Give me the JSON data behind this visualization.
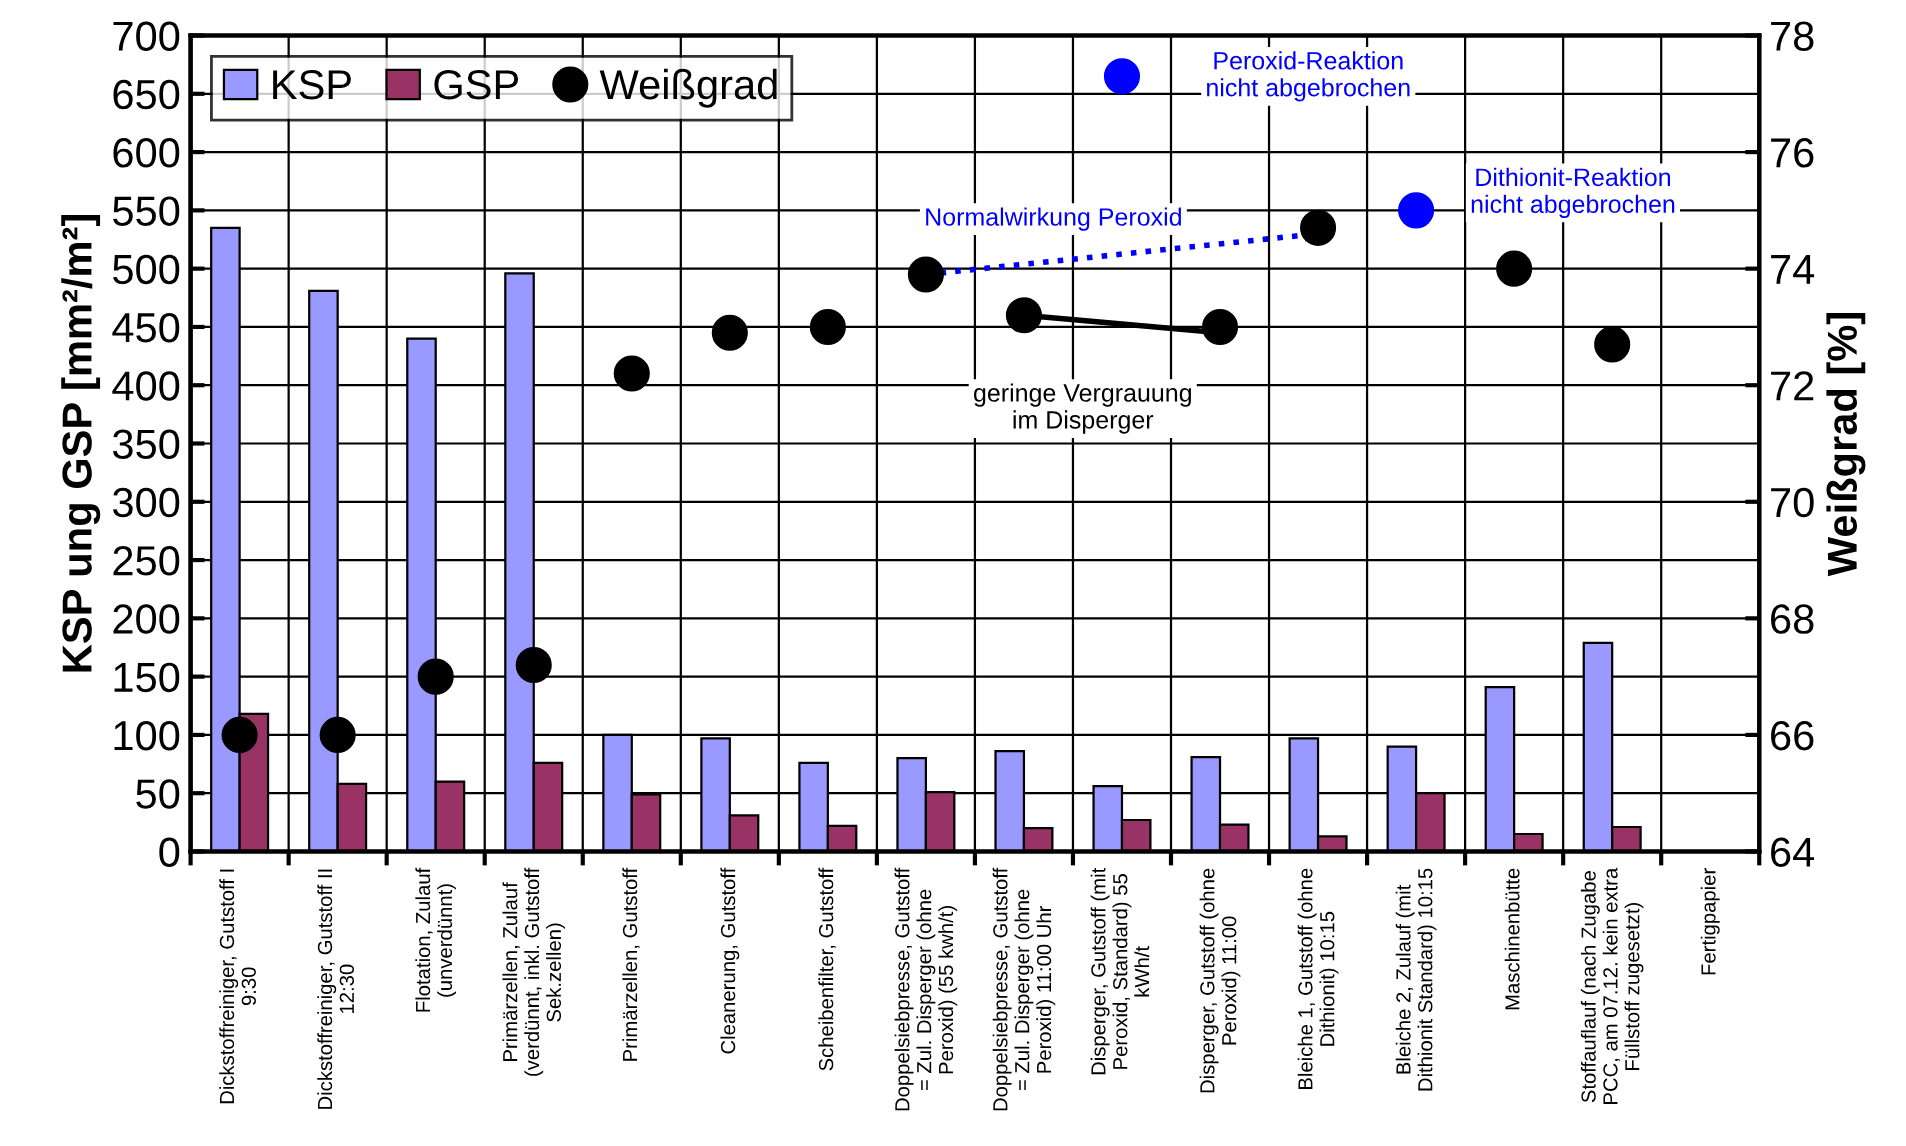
{
  "chart_data": {
    "type": "bar",
    "ylabel": "KSP ung GSP [mm²/m²]",
    "y2label": "Weißgrad [%]",
    "categories": [
      "Dickstoffreiniger, Gutstoff I\n9:30",
      "Dickstoffreiniger, Gutstoff II\n12:30",
      "Flotation, Zulauf\n(unverdünnt)",
      "Primärzellen, Zulauf\n(verdünnt, inkl. Gutstoff\nSek.zellen)",
      "Primärzellen, Gutstoff",
      "Cleanerung, Gutstoff",
      "Scheibenfilter, Gutstoff",
      "Doppelsiebpresse, Gutstoff\n= Zul. Disperger (ohne\nPeroxid) (55 kwh/t)",
      "Doppelsiebpresse, Gutstoff\n= Zul. Disperger (ohne\nPeroxid) 11:00 Uhr",
      "Disperger, Gutstoff (mit\nPeroxid, Standard) 55\nkWh/t",
      "Disperger, Gutstoff (ohne\nPeroxid) 11:00",
      "Bleiche 1, Gutstoff (ohne\nDithionit) 10:15",
      "Bleiche 2, Zulauf (mit\nDithionit Standard) 10:15",
      "Maschinenbütte",
      "Stoffauflauf (nach Zugabe\nPCC, am 07.12. kein extra\nFüllstoff zugesetzt)",
      "Fertigpapier"
    ],
    "series": [
      {
        "name": "KSP",
        "color": "#9999ff",
        "values": [
          535,
          481,
          440,
          496,
          100,
          97,
          76,
          80,
          86,
          56,
          81,
          97,
          90,
          141,
          179,
          null
        ]
      },
      {
        "name": "GSP",
        "color": "#993366",
        "values": [
          118,
          58,
          60,
          76,
          49,
          31,
          22,
          51,
          20,
          27,
          23,
          13,
          50,
          15,
          21,
          null
        ]
      },
      {
        "name": "Weißgrad",
        "type": "scatter",
        "axis": "y2",
        "color": "#000000",
        "marker": "circle",
        "values": [
          66.0,
          66.0,
          67.0,
          67.2,
          72.2,
          72.9,
          73.0,
          73.9,
          73.2,
          null,
          73.0,
          74.7,
          null,
          74.0,
          72.7,
          null
        ]
      },
      {
        "type": "scatter",
        "axis": "y2",
        "color": "#0000ff",
        "marker": "circle",
        "values": [
          null,
          null,
          null,
          null,
          null,
          null,
          null,
          null,
          null,
          77.3,
          null,
          null,
          75.0,
          null,
          null,
          null
        ]
      },
      {
        "type": "line",
        "axis": "y2",
        "color": "#0000ff",
        "line_style": "dotted",
        "values": [
          null,
          null,
          null,
          null,
          null,
          null,
          null,
          73.9,
          null,
          null,
          null,
          74.6,
          null,
          null,
          null,
          null
        ]
      },
      {
        "type": "line",
        "axis": "y2",
        "color": "#000000",
        "line_style": "solid",
        "values": [
          null,
          null,
          null,
          null,
          null,
          null,
          null,
          null,
          73.2,
          null,
          72.9,
          null,
          null,
          null,
          null,
          null
        ]
      }
    ],
    "ylim": [
      0,
      700
    ],
    "yticks": [
      0,
      50,
      100,
      150,
      200,
      250,
      300,
      350,
      400,
      450,
      500,
      550,
      600,
      650,
      700
    ],
    "y2lim": [
      64,
      78
    ],
    "y2ticks": [
      64,
      66,
      68,
      70,
      72,
      74,
      76,
      78
    ],
    "annotations": [
      "Peroxid-Reaktion\nnicht abgebrochen",
      "Dithionit-Reaktion\nnicht abgebrochen",
      "Normalwirkung Peroxid",
      "geringe Vergrauung\nim Disperger"
    ],
    "grid": true,
    "legend": "top left"
  }
}
